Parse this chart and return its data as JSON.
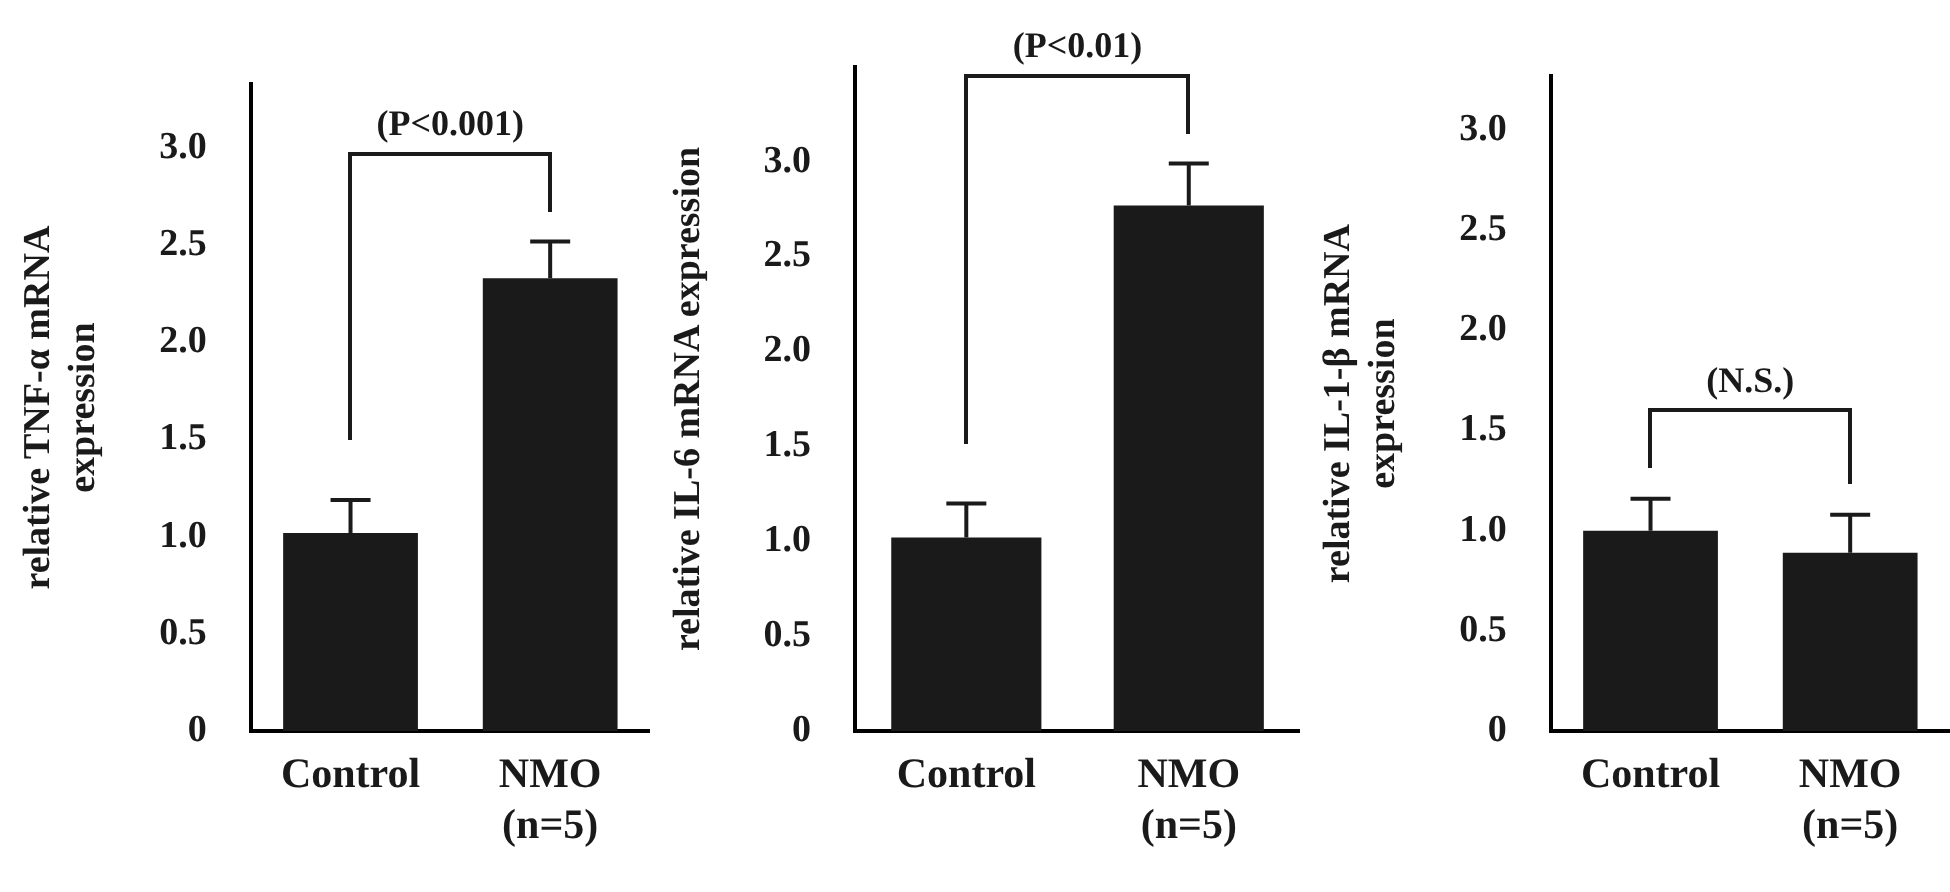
{
  "chart_data": [
    {
      "type": "bar",
      "categories": [
        "Control",
        "NMO\n(n=5)"
      ],
      "values": [
        1.02,
        2.33
      ],
      "errors": [
        0.17,
        0.19
      ],
      "color": "#1a1a1a",
      "ylabel": "relative TNF-α mRNA\nexpression",
      "ylim": [
        0,
        3.33
      ],
      "yticks": [
        0,
        0.5,
        {
          "value": 1,
          "label": "1.0"
        },
        1.5,
        {
          "value": 2,
          "label": "2.0"
        },
        2.5,
        {
          "value": 3,
          "label": "3.0"
        }
      ],
      "annotations": [
        "(P<0.001)"
      ],
      "grid": false,
      "legend": false
    },
    {
      "type": "bar",
      "categories": [
        "Control",
        "NMO\n(n=5)"
      ],
      "values": [
        1.02,
        2.77
      ],
      "errors": [
        0.18,
        0.22
      ],
      "color": "#1a1a1a",
      "ylabel": "relative IL-6 mRNA expression",
      "ylim": [
        0,
        3.5
      ],
      "yticks": [
        0,
        0.5,
        {
          "value": 1,
          "label": "1.0"
        },
        1.5,
        {
          "value": 2,
          "label": "2.0"
        },
        2.5,
        {
          "value": 3,
          "label": "3.0"
        }
      ],
      "annotations": [
        "(P<0.01)"
      ],
      "grid": false,
      "legend": false
    },
    {
      "type": "bar",
      "categories": [
        "Control",
        "NMO\n(n=5)"
      ],
      "values": [
        1.0,
        0.89
      ],
      "errors": [
        0.16,
        0.19
      ],
      "color": "#1a1a1a",
      "ylabel": "relative IL-1-β mRNA\nexpression",
      "ylim": [
        0,
        3.27
      ],
      "yticks": [
        0,
        0.5,
        {
          "value": 1,
          "label": "1.0"
        },
        1.5,
        {
          "value": 2,
          "label": "2.0"
        },
        2.5,
        {
          "value": 3,
          "label": "3.0"
        }
      ],
      "annotations": [
        "(N.S.)"
      ],
      "grid": false,
      "legend": false
    }
  ]
}
